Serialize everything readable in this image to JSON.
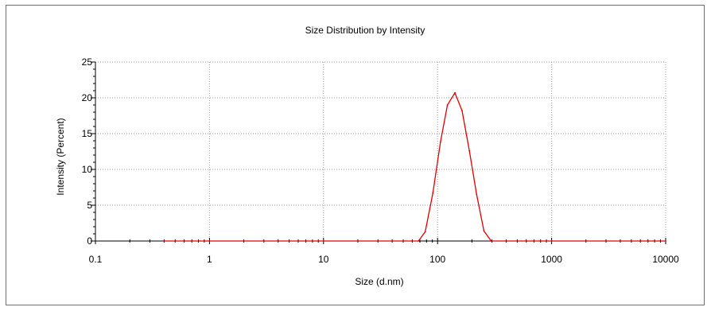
{
  "chart_data": {
    "type": "line",
    "title": "Size Distribution by Intensity",
    "xlabel": "Size (d.nm)",
    "ylabel": "Intensity (Percent)",
    "x_scale": "log",
    "xlim": [
      0.1,
      10000
    ],
    "ylim": [
      0,
      25
    ],
    "x_ticks": [
      0.1,
      1,
      10,
      100,
      1000,
      10000
    ],
    "x_tick_labels": [
      "0.1",
      "1",
      "10",
      "100",
      "1000",
      "10000"
    ],
    "y_ticks": [
      0,
      5,
      10,
      15,
      20,
      25
    ],
    "y_tick_labels": [
      "0",
      "5",
      "10",
      "15",
      "20",
      "25"
    ],
    "grid": true,
    "line_color": "#e00000",
    "series": [
      {
        "name": "",
        "x": [
          0.4,
          0.5,
          0.6,
          0.7,
          0.8,
          0.9,
          1,
          2,
          3,
          4,
          5,
          6,
          7,
          8,
          9,
          10,
          20,
          30,
          40,
          50,
          60,
          68,
          78,
          91,
          106,
          122,
          142,
          164,
          190,
          220,
          255,
          295,
          400,
          500,
          600,
          700,
          800,
          900,
          1000,
          2000,
          3000,
          4000,
          5000,
          6000,
          7000,
          8000,
          9000,
          10000
        ],
        "y": [
          0,
          0,
          0,
          0,
          0,
          0,
          0,
          0,
          0,
          0,
          0,
          0,
          0,
          0,
          0,
          0,
          0,
          0,
          0,
          0,
          0,
          0,
          1.3,
          6.7,
          13.8,
          19.0,
          20.7,
          18.2,
          12.6,
          6.5,
          1.4,
          0,
          0,
          0,
          0,
          0,
          0,
          0,
          0,
          0,
          0,
          0,
          0,
          0,
          0,
          0,
          0,
          0
        ]
      }
    ]
  }
}
